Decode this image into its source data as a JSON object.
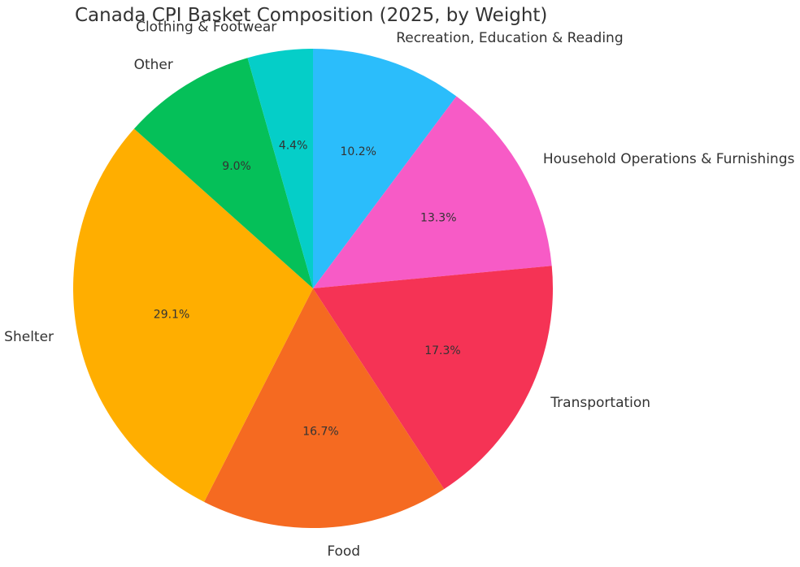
{
  "chart_data": {
    "type": "pie",
    "title": "Canada CPI Basket Composition (2025, by Weight)",
    "slices": [
      {
        "label": "Recreation, Education & Reading",
        "value": 10.2,
        "pct_label": "10.2%",
        "color": "#2bbdfb"
      },
      {
        "label": "Household Operations & Furnishings",
        "value": 13.3,
        "pct_label": "13.3%",
        "color": "#f75bc6"
      },
      {
        "label": "Transportation",
        "value": 17.3,
        "pct_label": "17.3%",
        "color": "#f53355"
      },
      {
        "label": "Food",
        "value": 16.7,
        "pct_label": "16.7%",
        "color": "#f56a21"
      },
      {
        "label": "Shelter",
        "value": 29.1,
        "pct_label": "29.1%",
        "color": "#ffae00"
      },
      {
        "label": "Other",
        "value": 9.0,
        "pct_label": "9.0%",
        "color": "#05c059"
      },
      {
        "label": "Clothing & Footwear",
        "value": 4.4,
        "pct_label": "4.4%",
        "color": "#05cec8"
      }
    ],
    "start_angle_deg": 90,
    "direction": "clockwise"
  }
}
